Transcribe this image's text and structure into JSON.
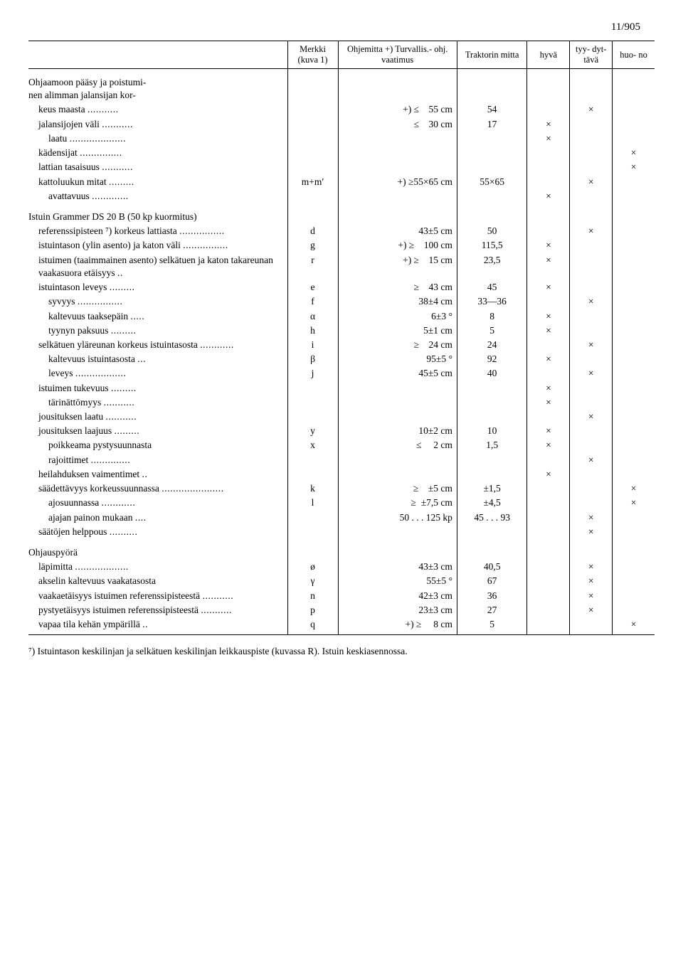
{
  "page_number": "11/905",
  "headers": {
    "col1": "",
    "col2": "Merkki\n(kuva 1)",
    "col3": "Ohjemitta\n+) Turvallis.-\nohj. vaatimus",
    "col4": "Traktorin\nmitta",
    "col5": "hyvä",
    "col6": "tyy-\ndyt-\ntävä",
    "col7": "huo-\nno"
  },
  "sections": [
    {
      "title": "Ohjaamoon pääsy ja poistuminen alimman jalansijan korkeus maasta",
      "rows": [
        {
          "desc": "keus maasta",
          "indent": 1,
          "dots": "...........",
          "mark": "",
          "ohj": "+) ≤    55 cm",
          "trak": "54",
          "hyva": "",
          "tyy": "×",
          "huo": ""
        },
        {
          "desc": "jalansijojen väli",
          "indent": 1,
          "dots": "...........",
          "mark": "",
          "ohj": "≤    30 cm",
          "trak": "17",
          "hyva": "×",
          "tyy": "",
          "huo": ""
        },
        {
          "desc": "laatu",
          "indent": 2,
          "dots": "....................",
          "mark": "",
          "ohj": "",
          "trak": "",
          "hyva": "×",
          "tyy": "",
          "huo": ""
        },
        {
          "desc": "kädensijat",
          "indent": 1,
          "dots": "...............",
          "mark": "",
          "ohj": "",
          "trak": "",
          "hyva": "",
          "tyy": "",
          "huo": "×"
        },
        {
          "desc": "lattian tasaisuus",
          "indent": 1,
          "dots": "...........",
          "mark": "",
          "ohj": "",
          "trak": "",
          "hyva": "",
          "tyy": "",
          "huo": "×"
        },
        {
          "desc": "kattoluukun mitat",
          "indent": 1,
          "dots": ".........",
          "mark": "m+m′",
          "ohj": "+) ≥55×65 cm",
          "trak": "55×65",
          "hyva": "",
          "tyy": "×",
          "huo": ""
        },
        {
          "desc": "avattavuus",
          "indent": 2,
          "dots": ".............",
          "mark": "",
          "ohj": "",
          "trak": "",
          "hyva": "×",
          "tyy": "",
          "huo": ""
        }
      ]
    },
    {
      "title": "Istuin Grammer DS 20 B (50 kp kuormitus)",
      "rows": [
        {
          "desc": "referenssipisteen ⁷)   korkeus lattiasta",
          "indent": 1,
          "dots": "................",
          "mark": "d",
          "ohj": "43±5 cm",
          "trak": "50",
          "hyva": "",
          "tyy": "×",
          "huo": ""
        },
        {
          "desc": "istuintason (ylin asento) ja katon väli",
          "indent": 1,
          "dots": "................",
          "mark": "g",
          "ohj": "+) ≥    100 cm",
          "trak": "115,5",
          "hyva": "×",
          "tyy": "",
          "huo": ""
        },
        {
          "desc": "istuimen (taaimmainen asento) selkätuen ja katon takareunan vaakasuora etäisyys",
          "indent": 1,
          "dots": "..",
          "mark": "r",
          "ohj": "+) ≥    15 cm",
          "trak": "23,5",
          "hyva": "×",
          "tyy": "",
          "huo": ""
        },
        {
          "desc": "istuintason leveys",
          "indent": 1,
          "dots": ".........",
          "mark": "e",
          "ohj": "≥    43 cm",
          "trak": "45",
          "hyva": "×",
          "tyy": "",
          "huo": ""
        },
        {
          "desc": "syvyys",
          "indent": 2,
          "dots": "................",
          "mark": "f",
          "ohj": "38±4 cm",
          "trak": "33—36",
          "hyva": "",
          "tyy": "×",
          "huo": ""
        },
        {
          "desc": "kaltevuus taaksepäin",
          "indent": 2,
          "dots": ".....",
          "mark": "α",
          "ohj": "6±3 °",
          "trak": "8",
          "hyva": "×",
          "tyy": "",
          "huo": ""
        },
        {
          "desc": "tyynyn paksuus",
          "indent": 2,
          "dots": ".........",
          "mark": "h",
          "ohj": "5±1 cm",
          "trak": "5",
          "hyva": "×",
          "tyy": "",
          "huo": ""
        },
        {
          "desc": "selkätuen yläreunan korkeus istuintasosta",
          "indent": 1,
          "dots": "............",
          "mark": "i",
          "ohj": "≥    24 cm",
          "trak": "24",
          "hyva": "",
          "tyy": "×",
          "huo": ""
        },
        {
          "desc": "kaltevuus istuintasosta",
          "indent": 2,
          "dots": "...",
          "mark": "β",
          "ohj": "95±5 °",
          "trak": "92",
          "hyva": "×",
          "tyy": "",
          "huo": ""
        },
        {
          "desc": "leveys",
          "indent": 2,
          "dots": "..................",
          "mark": "j",
          "ohj": "45±5 cm",
          "trak": "40",
          "hyva": "",
          "tyy": "×",
          "huo": ""
        },
        {
          "desc": "istuimen tukevuus",
          "indent": 1,
          "dots": ".........",
          "mark": "",
          "ohj": "",
          "trak": "",
          "hyva": "×",
          "tyy": "",
          "huo": ""
        },
        {
          "desc": "tärinättömyys",
          "indent": 2,
          "dots": "...........",
          "mark": "",
          "ohj": "",
          "trak": "",
          "hyva": "×",
          "tyy": "",
          "huo": ""
        },
        {
          "desc": "jousituksen laatu",
          "indent": 1,
          "dots": "...........",
          "mark": "",
          "ohj": "",
          "trak": "",
          "hyva": "",
          "tyy": "×",
          "huo": ""
        },
        {
          "desc": "jousituksen laajuus",
          "indent": 1,
          "dots": ".........",
          "mark": "y",
          "ohj": "10±2 cm",
          "trak": "10",
          "hyva": "×",
          "tyy": "",
          "huo": ""
        },
        {
          "desc": "poikkeama pystysuunnasta",
          "indent": 2,
          "dots": "",
          "mark": "x",
          "ohj": "≤     2 cm",
          "trak": "1,5",
          "hyva": "×",
          "tyy": "",
          "huo": ""
        },
        {
          "desc": "rajoittimet",
          "indent": 2,
          "dots": "..............",
          "mark": "",
          "ohj": "",
          "trak": "",
          "hyva": "",
          "tyy": "×",
          "huo": ""
        },
        {
          "desc": "heilahduksen vaimentimet",
          "indent": 1,
          "dots": "..",
          "mark": "",
          "ohj": "",
          "trak": "",
          "hyva": "×",
          "tyy": "",
          "huo": ""
        },
        {
          "desc": "säädettävyys korkeussuunnassa",
          "indent": 1,
          "dots": "......................",
          "mark": "k",
          "ohj": "≥    ±5 cm",
          "trak": "±1,5",
          "hyva": "",
          "tyy": "",
          "huo": "×"
        },
        {
          "desc": "ajosuunnassa",
          "indent": 2,
          "dots": "............",
          "mark": "l",
          "ohj": "≥  ±7,5 cm",
          "trak": "±4,5",
          "hyva": "",
          "tyy": "",
          "huo": "×"
        },
        {
          "desc": "ajajan painon mukaan",
          "indent": 2,
          "dots": "....",
          "mark": "",
          "ohj": "50 . . . 125 kp",
          "trak": "45 . . . 93",
          "hyva": "",
          "tyy": "×",
          "huo": ""
        },
        {
          "desc": "säätöjen helppous",
          "indent": 1,
          "dots": "..........",
          "mark": "",
          "ohj": "",
          "trak": "",
          "hyva": "",
          "tyy": "×",
          "huo": ""
        }
      ]
    },
    {
      "title": "Ohjauspyörä",
      "rows": [
        {
          "desc": "läpimitta",
          "indent": 1,
          "dots": "...................",
          "mark": "ø",
          "ohj": "43±3 cm",
          "trak": "40,5",
          "hyva": "",
          "tyy": "×",
          "huo": ""
        },
        {
          "desc": "akselin kaltevuus vaakatasosta",
          "indent": 1,
          "dots": "",
          "mark": "γ",
          "ohj": "55±5 °",
          "trak": "67",
          "hyva": "",
          "tyy": "×",
          "huo": ""
        },
        {
          "desc": "vaakaetäisyys istuimen referenssipisteestä",
          "indent": 1,
          "dots": "...........",
          "mark": "n",
          "ohj": "42±3 cm",
          "trak": "36",
          "hyva": "",
          "tyy": "×",
          "huo": ""
        },
        {
          "desc": "pystyetäisyys istuimen referenssipisteestä",
          "indent": 1,
          "dots": "...........",
          "mark": "p",
          "ohj": "23±3 cm",
          "trak": "27",
          "hyva": "",
          "tyy": "×",
          "huo": ""
        },
        {
          "desc": "vapaa tila kehän ympärillä",
          "indent": 1,
          "dots": "..",
          "mark": "q",
          "ohj": "+) ≥     8 cm",
          "trak": "5",
          "hyva": "",
          "tyy": "",
          "huo": "×"
        }
      ]
    }
  ],
  "section1_header": "Ohjaamoon pääsy ja poistumi-\nnen alimman jalansijan kor-",
  "footnote": "⁷) Istuintason keskilinjan ja selkätuen keskilinjan leikkauspiste (kuvassa R). Istuin keskiasennossa."
}
